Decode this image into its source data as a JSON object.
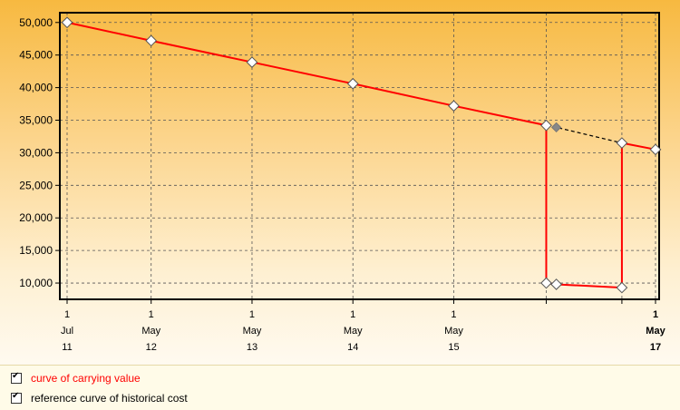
{
  "chart_data": {
    "type": "line",
    "title": "",
    "xlabel": "",
    "ylabel": "",
    "ylim": [
      7500,
      51500
    ],
    "y_ticks": [
      "10,000",
      "15,000",
      "20,000",
      "25,000",
      "30,000",
      "35,000",
      "40,000",
      "45,000",
      "50,000"
    ],
    "y_tick_values": [
      10000,
      15000,
      20000,
      25000,
      30000,
      35000,
      40000,
      45000,
      50000
    ],
    "x_ticks": [
      {
        "x": 0,
        "day": "1",
        "month": "Jul",
        "year": "11"
      },
      {
        "x": 10,
        "day": "1",
        "month": "May",
        "year": "12"
      },
      {
        "x": 22,
        "day": "1",
        "month": "May",
        "year": "13"
      },
      {
        "x": 34,
        "day": "1",
        "month": "May",
        "year": "14"
      },
      {
        "x": 46,
        "day": "1",
        "month": "May",
        "year": "15"
      },
      {
        "x": 70,
        "day": "1",
        "month": "May",
        "year": "17"
      }
    ],
    "extra_grid_x": [
      57,
      66
    ],
    "xlim": [
      0,
      70
    ],
    "series": [
      {
        "name": "curve of carrying value",
        "color": "#ff0000",
        "style": "solid",
        "points": [
          [
            0,
            50000
          ],
          [
            10,
            47200
          ],
          [
            22,
            43900
          ],
          [
            34,
            40600
          ],
          [
            46,
            37200
          ],
          [
            57,
            34200
          ],
          [
            57,
            10000
          ],
          [
            58.2,
            9800
          ],
          [
            66,
            9300
          ],
          [
            66,
            31500
          ],
          [
            70,
            30500
          ]
        ]
      },
      {
        "name": "reference curve of historical cost",
        "color": "#000000",
        "style": "dashed",
        "points": [
          [
            57,
            34200
          ],
          [
            58.2,
            33900
          ],
          [
            66,
            31500
          ]
        ]
      }
    ],
    "grid": true,
    "legend_position": "bottom-left"
  },
  "legend": {
    "items": [
      {
        "label": "curve of carrying value",
        "color": "#ff0000",
        "checked": true
      },
      {
        "label": "reference curve of historical cost",
        "color": "#000000",
        "checked": true
      }
    ]
  }
}
